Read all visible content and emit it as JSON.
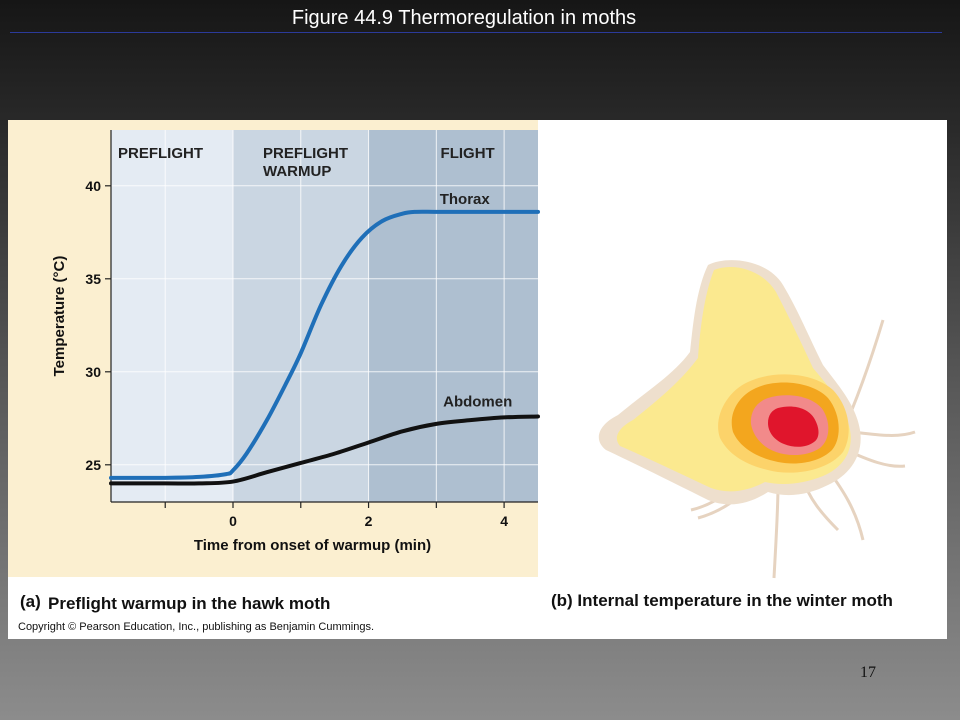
{
  "slide": {
    "title": "Figure 44.9  Thermoregulation in moths",
    "page_number": "17"
  },
  "panel_a": {
    "caption_letter": "(a)",
    "caption": "Preflight warmup in the hawk moth"
  },
  "panel_b": {
    "caption": "(b) Internal temperature in the winter moth",
    "image_description": "moth-thermal-map"
  },
  "copyright": "Copyright © Pearson Education, Inc., publishing as Benjamin Cummings.",
  "colors": {
    "thorax": "#1f6fb8",
    "abdomen": "#111111",
    "phase_preflight": "#e4ebf3",
    "phase_warmup": "#cad6e2",
    "phase_flight": "#aebfd0",
    "margin": "#fbefd0"
  },
  "chart_data": {
    "type": "line",
    "xlabel": "Time from onset of warmup (min)",
    "ylabel": "Temperature (°C)",
    "xlim": [
      -1.8,
      4.5
    ],
    "ylim": [
      23,
      43
    ],
    "xticks": [
      0,
      2,
      4
    ],
    "yticks": [
      25,
      30,
      35,
      40
    ],
    "grid": true,
    "phases": [
      {
        "label": "PREFLIGHT",
        "x_start": -1.8,
        "x_end": 0
      },
      {
        "label": "PREFLIGHT WARMUP",
        "x_start": 0,
        "x_end": 2
      },
      {
        "label": "FLIGHT",
        "x_start": 2,
        "x_end": 4.5
      }
    ],
    "series": [
      {
        "name": "Thorax",
        "x": [
          -1.8,
          -1.0,
          -0.5,
          -0.1,
          0.0,
          0.2,
          0.5,
          0.8,
          1.0,
          1.3,
          1.6,
          1.9,
          2.2,
          2.5,
          2.7,
          3.0,
          3.5,
          4.0,
          4.5
        ],
        "y": [
          24.3,
          24.3,
          24.35,
          24.5,
          24.7,
          25.6,
          27.4,
          29.5,
          31.0,
          33.6,
          35.7,
          37.2,
          38.1,
          38.5,
          38.6,
          38.6,
          38.6,
          38.6,
          38.6
        ]
      },
      {
        "name": "Abdomen",
        "x": [
          -1.8,
          -1.0,
          -0.5,
          0.0,
          0.5,
          1.0,
          1.5,
          2.0,
          2.5,
          3.0,
          3.5,
          4.0,
          4.5
        ],
        "y": [
          24.0,
          24.0,
          24.0,
          24.1,
          24.6,
          25.1,
          25.6,
          26.2,
          26.8,
          27.2,
          27.4,
          27.55,
          27.6
        ]
      }
    ]
  }
}
